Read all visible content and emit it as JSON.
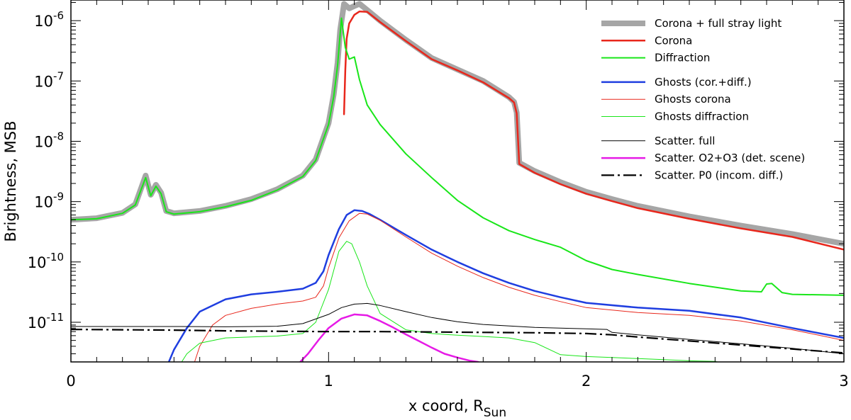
{
  "chart_data": {
    "type": "line",
    "xlabel": "x coord, R",
    "xlabel_sub": "Sun",
    "ylabel": "Brightness, MSB",
    "xlim": [
      0,
      3
    ],
    "ylim": [
      2.2e-12,
      2.2e-06
    ],
    "yscale": "log",
    "x_ticks": [
      0,
      1,
      2,
      3
    ],
    "y_ticks": [
      {
        "value": 1e-11,
        "base": "10",
        "exp": "-11"
      },
      {
        "value": 1e-10,
        "base": "10",
        "exp": "-10"
      },
      {
        "value": 1e-09,
        "base": "10",
        "exp": "-9"
      },
      {
        "value": 1e-08,
        "base": "10",
        "exp": "-8"
      },
      {
        "value": 1e-07,
        "base": "10",
        "exp": "-7"
      },
      {
        "value": 1e-06,
        "base": "10",
        "exp": "-6"
      }
    ],
    "legend_position": "top-right",
    "series": [
      {
        "name": "Corona + full stray light",
        "color": "#a6a6a6",
        "width": 8,
        "dash": "",
        "x": [
          0,
          0.1,
          0.2,
          0.25,
          0.29,
          0.31,
          0.33,
          0.35,
          0.37,
          0.39,
          0.4,
          0.5,
          0.6,
          0.7,
          0.8,
          0.9,
          0.95,
          1.0,
          1.02,
          1.035,
          1.045,
          1.06,
          1.08,
          1.1,
          1.12,
          1.15,
          1.2,
          1.3,
          1.4,
          1.5,
          1.6,
          1.7,
          1.72,
          1.73,
          1.74,
          1.8,
          1.9,
          2.0,
          2.1,
          2.2,
          2.4,
          2.6,
          2.8,
          3.0
        ],
        "y": [
          5e-10,
          5.3e-10,
          6.5e-10,
          9e-10,
          2.7e-09,
          1.3e-09,
          1.9e-09,
          1.4e-09,
          7e-10,
          6.6e-10,
          6.4e-10,
          7e-10,
          8.5e-10,
          1.1e-09,
          1.6e-09,
          2.7e-09,
          5e-09,
          2e-08,
          6e-08,
          2e-07,
          7e-07,
          1.9e-06,
          1.6e-06,
          1.75e-06,
          1.9e-06,
          1.5e-06,
          1e-06,
          4.8e-07,
          2.4e-07,
          1.55e-07,
          1e-07,
          5.4e-08,
          4.5e-08,
          3e-08,
          4.4e-09,
          3.2e-09,
          2.1e-09,
          1.45e-09,
          1.1e-09,
          8.5e-10,
          5.7e-10,
          4e-10,
          2.9e-10,
          2e-10
        ]
      },
      {
        "name": "Corona",
        "color": "#e8271c",
        "width": 2.5,
        "dash": "",
        "x": [
          1.06,
          1.065,
          1.07,
          1.08,
          1.1,
          1.12,
          1.15,
          1.2,
          1.3,
          1.4,
          1.5,
          1.6,
          1.7,
          1.72,
          1.73,
          1.74,
          1.8,
          1.9,
          2.0,
          2.1,
          2.2,
          2.4,
          2.6,
          2.8,
          3.0
        ],
        "y": [
          2.8e-08,
          1.5e-07,
          5e-07,
          9e-07,
          1.25e-06,
          1.42e-06,
          1.4e-06,
          9.5e-07,
          4.6e-07,
          2.3e-07,
          1.5e-07,
          9.5e-08,
          5.2e-08,
          4.4e-08,
          2.9e-08,
          4.2e-09,
          3e-09,
          1.95e-09,
          1.35e-09,
          1.02e-09,
          7.8e-10,
          5.2e-10,
          3.6e-10,
          2.6e-10,
          1.6e-10
        ]
      },
      {
        "name": "Diffraction",
        "color": "#19e619",
        "width": 2,
        "dash": "",
        "x": [
          0,
          0.1,
          0.2,
          0.25,
          0.29,
          0.31,
          0.33,
          0.35,
          0.37,
          0.39,
          0.4,
          0.5,
          0.6,
          0.7,
          0.8,
          0.9,
          0.95,
          1.0,
          1.02,
          1.035,
          1.05,
          1.065,
          1.08,
          1.1,
          1.12,
          1.15,
          1.2,
          1.3,
          1.4,
          1.5,
          1.6,
          1.7,
          1.8,
          1.9,
          1.93,
          2.0,
          2.1,
          2.2,
          2.4,
          2.6,
          2.68,
          2.7,
          2.72,
          2.76,
          2.8,
          3.0
        ],
        "y": [
          5e-10,
          5.2e-10,
          6.4e-10,
          8.8e-10,
          2.5e-09,
          1.25e-09,
          1.8e-09,
          1.35e-09,
          6.8e-10,
          6.4e-10,
          6.2e-10,
          6.8e-10,
          8.2e-10,
          1.05e-09,
          1.55e-09,
          2.6e-09,
          4.8e-09,
          1.9e-08,
          5.5e-08,
          1.8e-07,
          1.1e-06,
          3.6e-07,
          2.3e-07,
          2.5e-07,
          1.05e-07,
          4e-08,
          1.9e-08,
          6.2e-09,
          2.5e-09,
          1.05e-09,
          5.4e-10,
          3.3e-10,
          2.35e-10,
          1.75e-10,
          1.5e-10,
          1.05e-10,
          7.5e-11,
          6.2e-11,
          4.4e-11,
          3.3e-11,
          3.2e-11,
          4.3e-11,
          4.4e-11,
          3.1e-11,
          2.9e-11,
          2.8e-11
        ]
      },
      {
        "name": "Ghosts (cor.+diff.)",
        "color": "#1f3ee0",
        "width": 2.5,
        "dash": "",
        "x": [
          0.38,
          0.4,
          0.45,
          0.5,
          0.6,
          0.7,
          0.8,
          0.9,
          0.95,
          0.98,
          1.0,
          1.04,
          1.07,
          1.1,
          1.13,
          1.16,
          1.2,
          1.3,
          1.4,
          1.5,
          1.6,
          1.7,
          1.8,
          1.9,
          2.0,
          2.2,
          2.4,
          2.6,
          2.8,
          3.0
        ],
        "y": [
          2.2e-12,
          3.5e-12,
          8e-12,
          1.5e-11,
          2.4e-11,
          2.9e-11,
          3.2e-11,
          3.6e-11,
          4.5e-11,
          7e-11,
          1.3e-10,
          3.5e-10,
          6e-10,
          7.2e-10,
          7e-10,
          6.2e-10,
          5e-10,
          2.8e-10,
          1.6e-10,
          1e-10,
          6.5e-11,
          4.5e-11,
          3.3e-11,
          2.6e-11,
          2.1e-11,
          1.75e-11,
          1.55e-11,
          1.2e-11,
          8e-12,
          5.5e-12
        ]
      },
      {
        "name": "Ghosts corona",
        "color": "#e8271c",
        "width": 1,
        "dash": "",
        "x": [
          0.48,
          0.5,
          0.55,
          0.6,
          0.7,
          0.8,
          0.9,
          0.95,
          0.98,
          1.0,
          1.04,
          1.08,
          1.12,
          1.15,
          1.2,
          1.3,
          1.4,
          1.5,
          1.6,
          1.7,
          1.8,
          1.9,
          2.0,
          2.2,
          2.4,
          2.6,
          2.8,
          3.0
        ],
        "y": [
          2.2e-12,
          4e-12,
          9e-12,
          1.3e-11,
          1.7e-11,
          2e-11,
          2.25e-11,
          2.6e-11,
          4e-11,
          8e-11,
          2.5e-10,
          4.8e-10,
          6.4e-10,
          6.2e-10,
          4.9e-10,
          2.6e-10,
          1.4e-10,
          8.5e-11,
          5.5e-11,
          3.8e-11,
          2.8e-11,
          2.2e-11,
          1.75e-11,
          1.45e-11,
          1.3e-11,
          1.05e-11,
          7.5e-12,
          5e-12
        ]
      },
      {
        "name": "Ghosts diffraction",
        "color": "#19e619",
        "width": 1,
        "dash": "",
        "x": [
          0.43,
          0.45,
          0.5,
          0.6,
          0.7,
          0.8,
          0.9,
          0.95,
          1.0,
          1.04,
          1.07,
          1.09,
          1.12,
          1.15,
          1.2,
          1.3,
          1.4,
          1.5,
          1.6,
          1.7,
          1.8,
          1.9,
          2.0,
          2.1,
          2.2,
          2.3,
          2.4,
          2.5,
          2.51
        ],
        "y": [
          2.2e-12,
          3e-12,
          4.5e-12,
          5.5e-12,
          5.7e-12,
          5.9e-12,
          6.5e-12,
          1e-11,
          3.5e-11,
          1.5e-10,
          2.2e-10,
          2e-10,
          1e-10,
          4e-11,
          1.4e-11,
          7.5e-12,
          6.5e-12,
          6.1e-12,
          5.8e-12,
          5.5e-12,
          4.6e-12,
          2.9e-12,
          2.7e-12,
          2.6e-12,
          2.5e-12,
          2.4e-12,
          2.3e-12,
          2.25e-12,
          2.2e-12
        ]
      },
      {
        "name": "Scatter. full",
        "color": "#000000",
        "width": 1,
        "dash": "",
        "x": [
          0,
          0.2,
          0.4,
          0.6,
          0.8,
          0.9,
          1.0,
          1.05,
          1.1,
          1.15,
          1.2,
          1.3,
          1.4,
          1.5,
          1.6,
          1.8,
          2.0,
          2.08,
          2.1,
          2.2,
          2.4,
          2.6,
          2.8,
          3.0
        ],
        "y": [
          8.5e-12,
          8.5e-12,
          8.5e-12,
          8.4e-12,
          8.6e-12,
          9.5e-12,
          1.35e-11,
          1.75e-11,
          2e-11,
          2.05e-11,
          1.9e-11,
          1.5e-11,
          1.2e-11,
          1.02e-11,
          9.2e-12,
          8.2e-12,
          7.8e-12,
          7.6e-12,
          6.8e-12,
          6.2e-12,
          5.2e-12,
          4.4e-12,
          3.7e-12,
          3e-12
        ]
      },
      {
        "name": "Scatter. O2+O3 (det. scene)",
        "color": "#e61ae6",
        "width": 2.5,
        "dash": "",
        "x": [
          0.89,
          0.92,
          0.96,
          1.0,
          1.05,
          1.1,
          1.15,
          1.2,
          1.25,
          1.3,
          1.35,
          1.4,
          1.45,
          1.5,
          1.55,
          1.58
        ],
        "y": [
          2.2e-12,
          3e-12,
          5e-12,
          8e-12,
          1.15e-11,
          1.35e-11,
          1.3e-11,
          1.05e-11,
          8.2e-12,
          6.3e-12,
          4.9e-12,
          3.8e-12,
          3e-12,
          2.6e-12,
          2.3e-12,
          2.2e-12
        ]
      },
      {
        "name": "Scatter. P0 (incom. diff.)",
        "color": "#000000",
        "width": 2.2,
        "dash": "16,5,3,5",
        "x": [
          0,
          0.2,
          0.4,
          0.6,
          0.8,
          1.0,
          1.2,
          1.4,
          1.6,
          1.8,
          2.0,
          2.1,
          2.2,
          2.4,
          2.6,
          2.8,
          3.0
        ],
        "y": [
          7.6e-12,
          7.5e-12,
          7.4e-12,
          7.2e-12,
          7.1e-12,
          7e-12,
          7e-12,
          6.9e-12,
          6.8e-12,
          6.7e-12,
          6.5e-12,
          6.2e-12,
          5.7e-12,
          4.9e-12,
          4.2e-12,
          3.6e-12,
          3.1e-12
        ]
      }
    ]
  }
}
